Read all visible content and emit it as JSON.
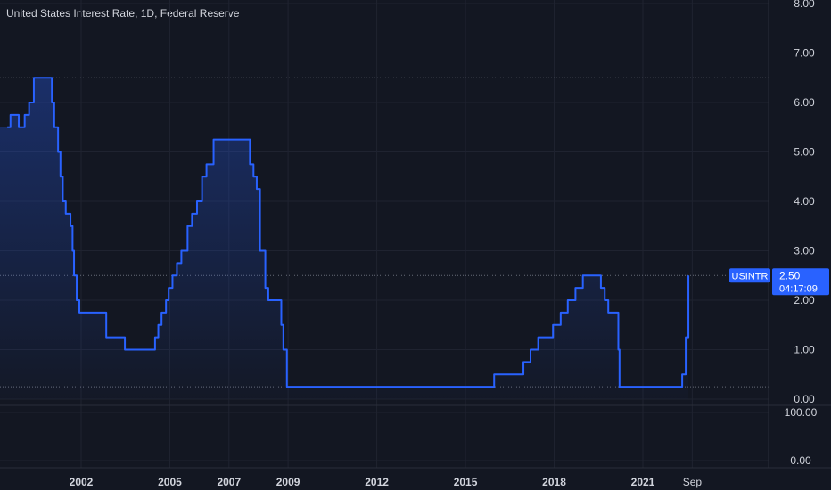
{
  "header": {
    "title": "United States Interest Rate, 1D, Federal Reserve"
  },
  "price_axis": {
    "labels": [
      "8.00",
      "7.00",
      "6.00",
      "5.00",
      "4.00",
      "3.00",
      "2.00",
      "1.00",
      "0.00"
    ]
  },
  "volume_axis": {
    "labels": [
      "100.00",
      "0.00"
    ]
  },
  "last_value": {
    "symbol": "USINTR",
    "value": "2.50",
    "countdown": "04:17:09"
  },
  "colors": {
    "background": "#131722",
    "line": "#2962ff",
    "grid": "#1f2330",
    "axis_text": "#d1d4dc",
    "label_bg": "#2962ff"
  },
  "chart_data": {
    "type": "area",
    "title": "United States Interest Rate, 1D, Federal Reserve",
    "ylim": [
      0,
      8
    ],
    "x_ticks": [
      "2002",
      "2005",
      "2007",
      "2009",
      "2012",
      "2015",
      "2018",
      "2021",
      "Sep"
    ],
    "x_tick_dates": [
      2002.0,
      2005.0,
      2007.0,
      2009.0,
      2012.0,
      2015.0,
      2018.0,
      2021.0,
      2022.67
    ],
    "series": [
      {
        "points": [
          [
            1999.5,
            5.5
          ],
          [
            1999.61,
            5.75
          ],
          [
            1999.89,
            5.5
          ],
          [
            1999.92,
            5.5
          ],
          [
            2000.09,
            5.75
          ],
          [
            2000.24,
            6.0
          ],
          [
            2000.4,
            6.5
          ],
          [
            2001.0,
            6.5
          ],
          [
            2001.01,
            6.0
          ],
          [
            2001.09,
            5.5
          ],
          [
            2001.22,
            5.0
          ],
          [
            2001.3,
            4.5
          ],
          [
            2001.38,
            4.0
          ],
          [
            2001.48,
            3.75
          ],
          [
            2001.64,
            3.5
          ],
          [
            2001.71,
            3.0
          ],
          [
            2001.76,
            2.5
          ],
          [
            2001.85,
            2.0
          ],
          [
            2001.94,
            1.75
          ],
          [
            2002.85,
            1.25
          ],
          [
            2003.48,
            1.0
          ],
          [
            2004.5,
            1.25
          ],
          [
            2004.61,
            1.5
          ],
          [
            2004.72,
            1.75
          ],
          [
            2004.87,
            2.0
          ],
          [
            2004.96,
            2.25
          ],
          [
            2005.09,
            2.5
          ],
          [
            2005.24,
            2.75
          ],
          [
            2005.39,
            3.0
          ],
          [
            2005.6,
            3.5
          ],
          [
            2005.75,
            3.75
          ],
          [
            2005.92,
            4.0
          ],
          [
            2006.09,
            4.5
          ],
          [
            2006.24,
            4.75
          ],
          [
            2006.48,
            5.25
          ],
          [
            2007.63,
            5.25
          ],
          [
            2007.71,
            4.75
          ],
          [
            2007.83,
            4.5
          ],
          [
            2007.94,
            4.25
          ],
          [
            2008.05,
            3.0
          ],
          [
            2008.23,
            2.25
          ],
          [
            2008.33,
            2.0
          ],
          [
            2008.77,
            1.5
          ],
          [
            2008.84,
            1.0
          ],
          [
            2008.96,
            0.25
          ],
          [
            2015.96,
            0.25
          ],
          [
            2015.97,
            0.5
          ],
          [
            2016.96,
            0.75
          ],
          [
            2017.2,
            1.0
          ],
          [
            2017.46,
            1.25
          ],
          [
            2017.96,
            1.5
          ],
          [
            2018.22,
            1.75
          ],
          [
            2018.46,
            2.0
          ],
          [
            2018.72,
            2.25
          ],
          [
            2018.97,
            2.5
          ],
          [
            2019.58,
            2.25
          ],
          [
            2019.71,
            2.0
          ],
          [
            2019.83,
            1.75
          ],
          [
            2020.17,
            1.0
          ],
          [
            2020.21,
            0.25
          ],
          [
            2022.21,
            0.25
          ],
          [
            2022.33,
            0.5
          ],
          [
            2022.45,
            1.25
          ],
          [
            2022.54,
            2.5
          ]
        ]
      }
    ],
    "last_value": 2.5,
    "grid": true
  }
}
